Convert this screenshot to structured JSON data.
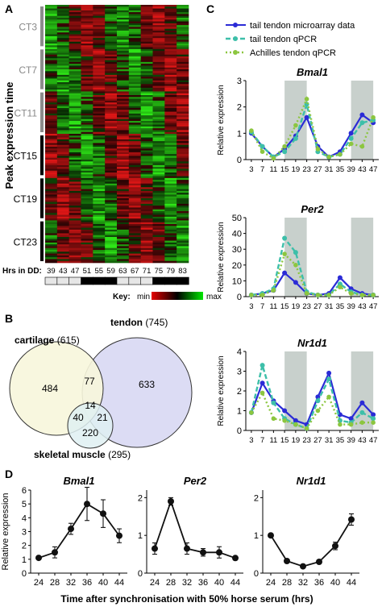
{
  "panels": {
    "A": {
      "label": "A"
    },
    "B": {
      "label": "B"
    },
    "C": {
      "label": "C"
    },
    "D": {
      "label": "D"
    }
  },
  "heatmap": {
    "ylabel": "Peak expression time",
    "ct_groups": [
      {
        "label": "CT3",
        "color": "#8c8c8c"
      },
      {
        "label": "CT7",
        "color": "#8c8c8c"
      },
      {
        "label": "CT11",
        "color": "#8c8c8c"
      },
      {
        "label": "CT15",
        "color": "#000000"
      },
      {
        "label": "CT19",
        "color": "#000000"
      },
      {
        "label": "CT23",
        "color": "#000000"
      }
    ],
    "hrs_label": "Hrs in DD:",
    "hrs": [
      "39",
      "43",
      "47",
      "51",
      "55",
      "59",
      "63",
      "67",
      "71",
      "75",
      "79",
      "83"
    ],
    "light_dark_bar": [
      "light",
      "light",
      "light",
      "dark",
      "dark",
      "dark",
      "light",
      "light",
      "light",
      "dark",
      "dark",
      "dark"
    ],
    "key_label": "Key:",
    "key_min": "min",
    "key_max": "max",
    "colors": {
      "low": "#00e600",
      "mid": "#000000",
      "high": "#e60000"
    }
  },
  "venn": {
    "sets": [
      {
        "name": "cartilage",
        "count": "(615)",
        "fill": "#f7f6dc"
      },
      {
        "name": "tendon",
        "count": "(745)",
        "fill": "#dcdcf4"
      },
      {
        "name": "skeletal muscle",
        "count": "(295)",
        "fill": "#dff0f2"
      }
    ],
    "regions": {
      "cartilage_only": "484",
      "tendon_only": "633",
      "cartilage_tendon": "77",
      "all_three": "14",
      "cartilage_muscle": "40",
      "tendon_muscle": "21",
      "muscle_only": "220"
    }
  },
  "legend_c": [
    {
      "label": "tail tendon microarray data",
      "color": "#2b2bd6",
      "style": "solid"
    },
    {
      "label": "tail tendon qPCR",
      "color": "#3dbfa9",
      "style": "dashed"
    },
    {
      "label": "Achilles tendon qPCR",
      "color": "#8cc63f",
      "style": "dotted"
    }
  ],
  "chart_data": [
    {
      "panel": "C",
      "type": "line",
      "title": "Bmal1",
      "ylabel": "Relative expression",
      "x": [
        3,
        7,
        11,
        15,
        19,
        23,
        27,
        31,
        35,
        39,
        43,
        47
      ],
      "ylim": [
        0,
        3
      ],
      "yticks": [
        0,
        1,
        2,
        3
      ],
      "shaded_ranges": [
        [
          15,
          23
        ],
        [
          39,
          47
        ]
      ],
      "series": [
        {
          "name": "tail tendon microarray data",
          "values": [
            1.0,
            0.5,
            0.1,
            0.4,
            0.9,
            1.6,
            0.5,
            0.1,
            0.3,
            1.0,
            1.7,
            1.4
          ]
        },
        {
          "name": "tail tendon qPCR",
          "values": [
            1.05,
            0.5,
            0.1,
            0.3,
            0.8,
            2.1,
            0.3,
            0.1,
            0.2,
            0.8,
            1.4,
            1.5
          ]
        },
        {
          "name": "Achilles tendon qPCR",
          "values": [
            1.1,
            0.3,
            0.05,
            0.5,
            1.3,
            2.3,
            0.4,
            0.1,
            0.2,
            0.6,
            0.5,
            1.6
          ]
        }
      ]
    },
    {
      "panel": "C",
      "type": "line",
      "title": "Per2",
      "ylabel": "Relative expression",
      "x": [
        3,
        7,
        11,
        15,
        19,
        23,
        27,
        31,
        35,
        39,
        43,
        47
      ],
      "ylim": [
        0,
        50
      ],
      "yticks": [
        0,
        10,
        20,
        30,
        40,
        50
      ],
      "shaded_ranges": [
        [
          15,
          23
        ],
        [
          39,
          47
        ]
      ],
      "series": [
        {
          "name": "tail tendon microarray data",
          "values": [
            1,
            2,
            4,
            15,
            9,
            2,
            1,
            2,
            12,
            5,
            2,
            1
          ]
        },
        {
          "name": "tail tendon qPCR",
          "values": [
            1,
            2,
            5,
            37,
            28,
            3,
            1,
            1,
            8,
            3,
            1,
            1
          ]
        },
        {
          "name": "Achilles tendon qPCR",
          "values": [
            1,
            1,
            4,
            27,
            20,
            2,
            1,
            1,
            6,
            2,
            1,
            1
          ]
        }
      ]
    },
    {
      "panel": "C",
      "type": "line",
      "title": "Nr1d1",
      "ylabel": "Relative expression",
      "x": [
        3,
        7,
        11,
        15,
        19,
        23,
        27,
        31,
        35,
        39,
        43,
        47
      ],
      "ylim": [
        0,
        4
      ],
      "yticks": [
        0,
        1,
        2,
        3,
        4
      ],
      "shaded_ranges": [
        [
          15,
          23
        ],
        [
          39,
          47
        ]
      ],
      "series": [
        {
          "name": "tail tendon microarray data",
          "values": [
            0.9,
            2.4,
            1.5,
            1.0,
            0.5,
            0.3,
            1.7,
            2.9,
            0.8,
            0.6,
            1.4,
            0.8
          ]
        },
        {
          "name": "tail tendon qPCR",
          "values": [
            0.9,
            3.3,
            1.4,
            0.6,
            0.3,
            0.1,
            1.5,
            2.6,
            0.5,
            0.4,
            0.9,
            0.6
          ]
        },
        {
          "name": "Achilles tendon qPCR",
          "values": [
            0.9,
            1.9,
            0.6,
            0.5,
            0.3,
            0.1,
            1.0,
            1.7,
            0.3,
            0.3,
            0.4,
            0.4
          ]
        }
      ]
    },
    {
      "panel": "D",
      "type": "line",
      "title": "Bmal1",
      "ylabel": "Relative expression",
      "x": [
        24,
        28,
        32,
        36,
        40,
        44
      ],
      "ylim": [
        0,
        6
      ],
      "yticks": [
        0,
        1,
        2,
        3,
        4,
        5,
        6
      ],
      "series": [
        {
          "values": [
            1.1,
            1.5,
            3.2,
            5.0,
            4.3,
            2.7
          ],
          "err": [
            0.1,
            0.4,
            0.4,
            1.2,
            1.0,
            0.5
          ]
        }
      ]
    },
    {
      "panel": "D",
      "type": "line",
      "title": "Per2",
      "x": [
        24,
        28,
        32,
        36,
        40,
        44
      ],
      "ylim": [
        0,
        2.2
      ],
      "yticks": [
        0,
        1,
        2
      ],
      "series": [
        {
          "values": [
            0.65,
            1.9,
            0.65,
            0.55,
            0.55,
            0.4
          ],
          "err": [
            0.15,
            0.1,
            0.15,
            0.1,
            0.15,
            0.05
          ]
        }
      ]
    },
    {
      "panel": "D",
      "type": "line",
      "title": "Nr1d1",
      "x": [
        24,
        28,
        32,
        36,
        40,
        44
      ],
      "ylim": [
        0,
        2.2
      ],
      "yticks": [
        0,
        1,
        2
      ],
      "series": [
        {
          "values": [
            1.0,
            0.32,
            0.18,
            0.3,
            0.72,
            1.42
          ],
          "err": [
            0.03,
            0.05,
            0.03,
            0.05,
            0.1,
            0.15
          ]
        }
      ]
    }
  ],
  "d_xlabel": "Time after synchronisation with 50% horse serum (hrs)"
}
